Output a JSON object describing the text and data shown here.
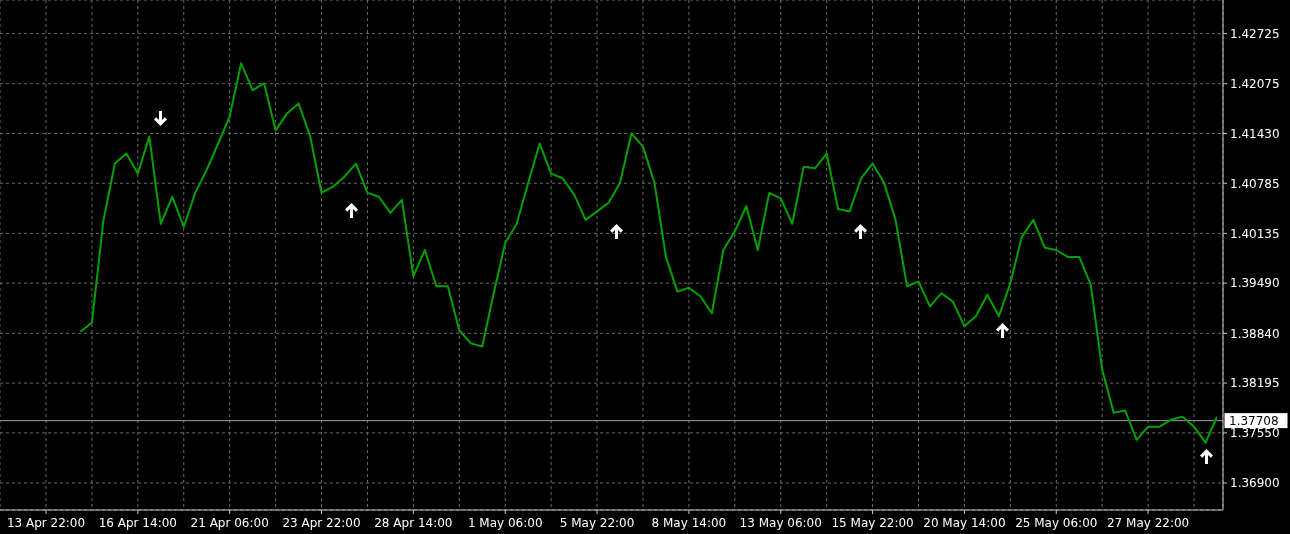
{
  "chart_data": {
    "type": "line",
    "categories": [
      "13 Apr 22:00",
      null,
      null,
      null,
      null,
      null,
      null,
      null,
      "16 Apr 14:00",
      null,
      null,
      null,
      null,
      null,
      null,
      null,
      "21 Apr 06:00",
      null,
      null,
      null,
      null,
      null,
      null,
      null,
      "23 Apr 22:00",
      null,
      null,
      null,
      null,
      null,
      null,
      null,
      "28 Apr 14:00",
      null,
      null,
      null,
      null,
      null,
      null,
      null,
      "1 May 06:00",
      null,
      null,
      null,
      null,
      null,
      null,
      null,
      "5 May 22:00",
      null,
      null,
      null,
      null,
      null,
      null,
      null,
      "8 May 14:00",
      null,
      null,
      null,
      null,
      null,
      null,
      null,
      "13 May 06:00",
      null,
      null,
      null,
      null,
      null,
      null,
      null,
      "15 May 22:00",
      null,
      null,
      null,
      null,
      null,
      null,
      null,
      "20 May 14:00",
      null,
      null,
      null,
      null,
      null,
      null,
      null,
      "25 May 06:00",
      null,
      null,
      null,
      null,
      null,
      null,
      null,
      "27 May 22:00",
      null,
      null,
      null,
      null,
      null,
      null
    ],
    "values": [
      null,
      null,
      null,
      1.3886,
      1.3898,
      1.403,
      1.4104,
      1.4117,
      1.4091,
      1.4139,
      1.4026,
      1.4061,
      1.4022,
      1.4066,
      1.4096,
      1.413,
      1.4165,
      1.4234,
      1.4199,
      1.4208,
      1.4147,
      1.4169,
      1.4182,
      1.414,
      1.4066,
      1.4074,
      1.4087,
      1.4104,
      1.4066,
      1.4061,
      1.404,
      1.4057,
      1.3958,
      1.3992,
      1.3945,
      1.3945,
      1.3888,
      1.3871,
      1.3867,
      1.3936,
      1.4001,
      1.4026,
      1.4079,
      1.413,
      1.4091,
      1.4085,
      1.4064,
      1.4031,
      1.4042,
      1.4053,
      1.4079,
      1.4143,
      1.4126,
      1.4079,
      1.3983,
      1.3938,
      1.3943,
      1.3932,
      1.391,
      1.3992,
      1.4016,
      1.4049,
      1.3992,
      1.4066,
      1.4059,
      1.4026,
      1.41,
      1.4098,
      1.4117,
      1.4045,
      1.4042,
      1.4085,
      1.4104,
      1.4079,
      1.4031,
      1.3945,
      1.3951,
      1.3919,
      1.3936,
      1.3925,
      1.3893,
      1.3906,
      1.3934,
      1.3906,
      1.3949,
      1.4009,
      1.4031,
      1.3995,
      1.3992,
      1.3983,
      1.3983,
      1.3947,
      1.3837,
      1.3781,
      1.3784,
      1.3746,
      1.3763,
      1.3763,
      1.3772,
      1.3776,
      1.3763,
      1.3742,
      1.3776
    ],
    "color": "#00a000",
    "ylim": [
      1.3655,
      1.4316
    ],
    "yticks": [
      {
        "value": 1.369,
        "label": "1.36900"
      },
      {
        "value": 1.3755,
        "label": "1.37550"
      },
      {
        "value": 1.38195,
        "label": "1.38195"
      },
      {
        "value": 1.3884,
        "label": "1.38840"
      },
      {
        "value": 1.3949,
        "label": "1.39490"
      },
      {
        "value": 1.40135,
        "label": "1.40135"
      },
      {
        "value": 1.40785,
        "label": "1.40785"
      },
      {
        "value": 1.4143,
        "label": "1.41430"
      },
      {
        "value": 1.42075,
        "label": "1.42075"
      },
      {
        "value": 1.42725,
        "label": "1.42725"
      }
    ],
    "grid": true,
    "ref_lines": [
      {
        "axis": "y",
        "value": 1.37708,
        "label": "1.37708",
        "color": "#a0a0a0"
      }
    ]
  }
}
